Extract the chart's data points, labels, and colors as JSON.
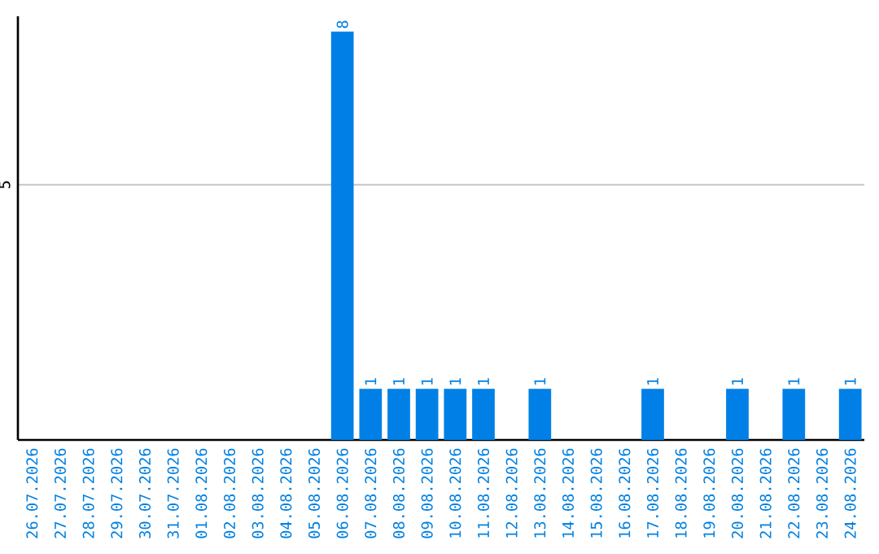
{
  "chart_data": {
    "type": "bar",
    "categories": [
      "26.07.2026",
      "27.07.2026",
      "28.07.2026",
      "29.07.2026",
      "30.07.2026",
      "31.07.2026",
      "01.08.2026",
      "02.08.2026",
      "03.08.2026",
      "04.08.2026",
      "05.08.2026",
      "06.08.2026",
      "07.08.2026",
      "08.08.2026",
      "09.08.2026",
      "10.08.2026",
      "11.08.2026",
      "12.08.2026",
      "13.08.2026",
      "14.08.2026",
      "15.08.2026",
      "16.08.2026",
      "17.08.2026",
      "18.08.2026",
      "19.08.2026",
      "20.08.2026",
      "21.08.2026",
      "22.08.2026",
      "23.08.2026",
      "24.08.2026"
    ],
    "values": [
      0,
      0,
      0,
      0,
      0,
      0,
      0,
      0,
      0,
      0,
      0,
      8,
      1,
      1,
      1,
      1,
      1,
      0,
      1,
      0,
      0,
      0,
      1,
      0,
      0,
      1,
      0,
      1,
      0,
      1
    ],
    "value_labels": [
      null,
      null,
      null,
      null,
      null,
      null,
      null,
      null,
      null,
      null,
      null,
      "8",
      "1",
      "1",
      "1",
      "1",
      "1",
      null,
      "1",
      null,
      null,
      null,
      "1",
      null,
      null,
      "1",
      null,
      "1",
      null,
      "1"
    ],
    "color": "#0080e6",
    "ylim": [
      0,
      8.3
    ],
    "yticks": [
      5
    ],
    "grid": "y"
  }
}
